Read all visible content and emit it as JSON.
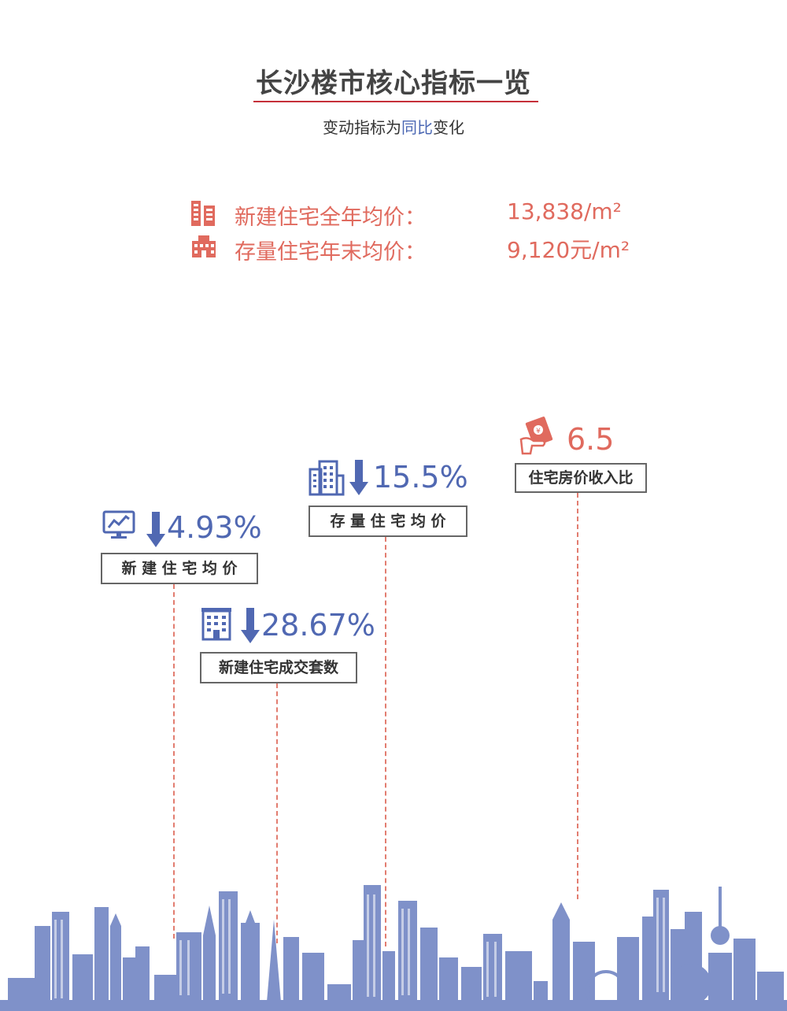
{
  "header": {
    "title": "长沙楼市核心指标一览",
    "subtitle_pre": "变动指标为",
    "subtitle_highlight": "同比",
    "subtitle_post": "变化"
  },
  "stats": [
    {
      "label": "新建住宅全年均价：",
      "value": "13,838/m²",
      "icon": "apartment-building-icon"
    },
    {
      "label": "存量住宅年末均价：",
      "value": "9,120元/m²",
      "icon": "residential-building-icon"
    }
  ],
  "metrics": [
    {
      "value": "4.93%",
      "label": "新 建 住 宅 均 价",
      "trend": "down",
      "icon": "monitor-chart-icon"
    },
    {
      "value": "28.67%",
      "label": "新建住宅成交套数",
      "trend": "down",
      "icon": "office-building-icon"
    },
    {
      "value": "15.5%",
      "label": "存 量 住 宅 均 价",
      "trend": "down",
      "icon": "tower-buildings-icon"
    },
    {
      "value": "6.5",
      "label": "住宅房价收入比",
      "trend": "none",
      "icon": "red-envelope-hand-icon"
    }
  ],
  "colors": {
    "accent_red": "#e06a5e",
    "accent_blue": "#5068b2",
    "skyline": "#7f91c9"
  }
}
